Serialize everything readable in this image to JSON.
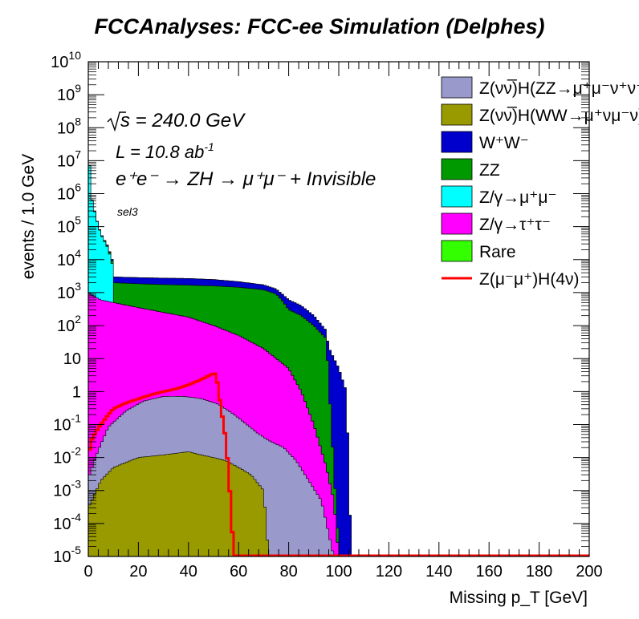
{
  "chart_data": {
    "type": "histogram",
    "title": "FCCAnalyses: FCC-ee Simulation (Delphes)",
    "xlabel": "Missing p_T [GeV]",
    "ylabel": "events / 1.0 GeV",
    "xlim": [
      0,
      200
    ],
    "ylim": [
      1e-05,
      10000000000.0
    ],
    "y_scale": "log",
    "stacked": true,
    "legend_position": "top-right",
    "x_ticks": [
      "0",
      "20",
      "40",
      "60",
      "80",
      "100",
      "120",
      "140",
      "160",
      "180",
      "200"
    ],
    "y_ticks": [
      {
        "base": "10",
        "exp": "10"
      },
      {
        "base": "10",
        "exp": "9"
      },
      {
        "base": "10",
        "exp": "8"
      },
      {
        "base": "10",
        "exp": "7"
      },
      {
        "base": "10",
        "exp": "6"
      },
      {
        "base": "10",
        "exp": "5"
      },
      {
        "base": "10",
        "exp": "4"
      },
      {
        "base": "10",
        "exp": "3"
      },
      {
        "base": "10",
        "exp": "2"
      },
      {
        "base": "10",
        "exp": ""
      },
      {
        "base": "1",
        "exp": ""
      },
      {
        "base": "10",
        "exp": "-1"
      },
      {
        "base": "10",
        "exp": "-2"
      },
      {
        "base": "10",
        "exp": "-3"
      },
      {
        "base": "10",
        "exp": "-4"
      },
      {
        "base": "10",
        "exp": "-5"
      }
    ],
    "annotations": {
      "sqrt_s": "s = 240.0 GeV",
      "lumi": "L = 10.8 ab",
      "lumi_exp": "-1",
      "process": "e⁺e⁻ → ZH → μ⁺μ⁻ + Invisible",
      "selection": "sel3"
    },
    "series_order_bottom_to_top": [
      "zvvH_WW",
      "zvvH_ZZ",
      "ztautau",
      "zmumu",
      "ZZ",
      "WW",
      "Rare"
    ],
    "series": [
      {
        "key": "zvvH_ZZ",
        "name": "Z(νν̅)H(ZZ→μ⁺μ⁻ν⁺ν⁻)",
        "color": "#9999cc",
        "style": "stack",
        "x": [
          0,
          3,
          8,
          15,
          22,
          30,
          38,
          45,
          52,
          58,
          63,
          68,
          73,
          78,
          83,
          88,
          93,
          98
        ],
        "y": [
          0.002,
          0.01,
          0.08,
          0.25,
          0.5,
          0.7,
          0.7,
          0.6,
          0.4,
          0.2,
          0.1,
          0.05,
          0.03,
          0.02,
          0.008,
          0.002,
          0.0005,
          1e-05
        ]
      },
      {
        "key": "zvvH_WW",
        "name": "Z(νν̅)H(WW→μ⁺νμ⁻ν)",
        "color": "#999900",
        "style": "stack",
        "x": [
          0,
          5,
          10,
          20,
          30,
          40,
          45,
          50,
          55,
          60,
          65,
          70,
          72
        ],
        "y": [
          0.0003,
          0.002,
          0.005,
          0.01,
          0.012,
          0.015,
          0.012,
          0.01,
          0.008,
          0.005,
          0.003,
          0.001,
          1e-05
        ]
      },
      {
        "key": "WW",
        "name": "W⁺W⁻",
        "color": "#0000cc",
        "style": "stack",
        "x": [
          1,
          5,
          10,
          20,
          30,
          40,
          50,
          60,
          70,
          76,
          80,
          85,
          90,
          95,
          100,
          103,
          105
        ],
        "y": [
          500,
          800,
          1000,
          1000,
          1000,
          1000,
          900,
          700,
          500,
          350,
          300,
          200,
          100,
          30,
          5,
          1,
          1e-05
        ]
      },
      {
        "key": "ZZ",
        "name": "ZZ",
        "color": "#009900",
        "style": "stack",
        "x": [
          0,
          5,
          10,
          20,
          30,
          40,
          50,
          60,
          70,
          75,
          78,
          80,
          85,
          90,
          95,
          100
        ],
        "y": [
          2000,
          2500,
          1500,
          1500,
          1500,
          1500,
          1500,
          1400,
          1200,
          900,
          500,
          300,
          200,
          100,
          40,
          1e-05
        ]
      },
      {
        "key": "zmumu",
        "name": "Z/γ→μ⁺μ⁻",
        "color": "#00ffff",
        "style": "stack",
        "x": [
          0,
          1,
          2,
          3,
          4,
          5,
          6,
          7,
          8,
          9,
          10,
          11
        ],
        "y": [
          50000000,
          1000000,
          400000,
          200000,
          100000,
          60000,
          40000,
          30000,
          20000,
          10000,
          5000,
          1e-05
        ]
      },
      {
        "key": "ztautau",
        "name": "Z/γ→τ⁺τ⁻",
        "color": "#ff00ff",
        "style": "stack",
        "x": [
          0,
          2,
          5,
          10,
          20,
          30,
          40,
          50,
          60,
          70,
          80,
          85,
          90,
          95,
          98,
          100
        ],
        "y": [
          1000,
          800,
          600,
          500,
          350,
          250,
          180,
          100,
          50,
          20,
          5,
          1,
          0.1,
          0.005,
          0.0005,
          1e-05
        ]
      },
      {
        "key": "Rare",
        "name": "Rare",
        "color": "#33ff00",
        "style": "stack",
        "x": [
          0,
          1,
          2
        ],
        "y": [
          1000000,
          10000,
          1e-05
        ]
      },
      {
        "key": "signal",
        "name": "Z(μ⁻μ⁺)H(4ν)",
        "color": "#ff0000",
        "style": "line",
        "x": [
          0,
          1,
          3,
          5,
          8,
          10,
          15,
          20,
          25,
          30,
          35,
          40,
          43,
          45,
          48,
          50,
          51,
          52,
          53,
          54,
          55,
          56,
          57,
          58,
          60,
          200
        ],
        "y": [
          0.01,
          0.03,
          0.06,
          0.1,
          0.2,
          0.3,
          0.45,
          0.6,
          0.8,
          1.0,
          1.2,
          1.6,
          2.0,
          2.3,
          3.0,
          3.5,
          3.5,
          1.0,
          0.3,
          0.1,
          0.03,
          0.003,
          0.0003,
          1e-05,
          1e-05,
          1e-05
        ]
      }
    ]
  }
}
